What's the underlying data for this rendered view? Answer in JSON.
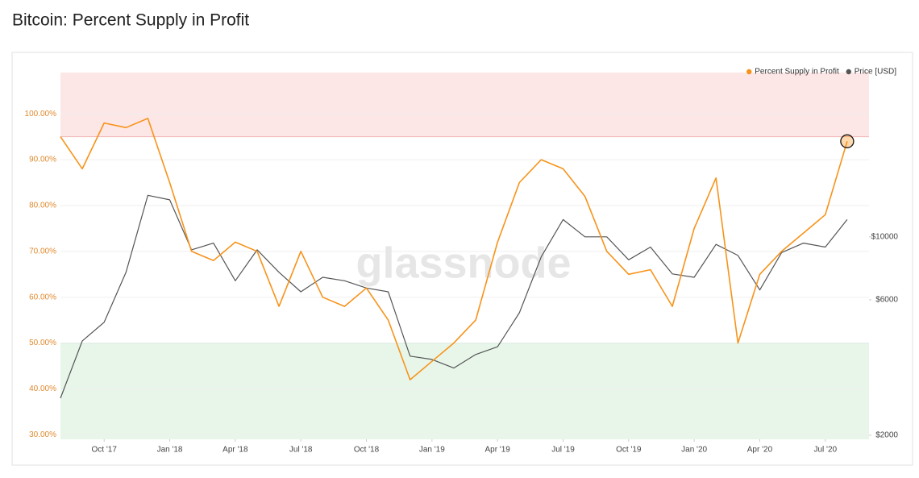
{
  "chart_data": {
    "type": "line",
    "title": "Bitcoin: Percent Supply in Profit",
    "watermark": "glassnode",
    "x": [
      "2017-08",
      "2017-09",
      "2017-10",
      "2017-11",
      "2017-12",
      "2018-01",
      "2018-02",
      "2018-03",
      "2018-04",
      "2018-05",
      "2018-06",
      "2018-07",
      "2018-08",
      "2018-09",
      "2018-10",
      "2018-11",
      "2018-12",
      "2019-01",
      "2019-02",
      "2019-03",
      "2019-04",
      "2019-05",
      "2019-06",
      "2019-07",
      "2019-08",
      "2019-09",
      "2019-10",
      "2019-11",
      "2019-12",
      "2020-01",
      "2020-02",
      "2020-03",
      "2020-04",
      "2020-05",
      "2020-06",
      "2020-07",
      "2020-08"
    ],
    "xlim": [
      "2017-08",
      "2020-09"
    ],
    "xticks": [
      {
        "value": "2017-10",
        "label": "Oct '17"
      },
      {
        "value": "2018-01",
        "label": "Jan '18"
      },
      {
        "value": "2018-04",
        "label": "Apr '18"
      },
      {
        "value": "2018-07",
        "label": "Jul '18"
      },
      {
        "value": "2018-10",
        "label": "Oct '18"
      },
      {
        "value": "2019-01",
        "label": "Jan '19"
      },
      {
        "value": "2019-04",
        "label": "Apr '19"
      },
      {
        "value": "2019-07",
        "label": "Jul '19"
      },
      {
        "value": "2019-10",
        "label": "Oct '19"
      },
      {
        "value": "2020-01",
        "label": "Jan '20"
      },
      {
        "value": "2020-04",
        "label": "Apr '20"
      },
      {
        "value": "2020-07",
        "label": "Jul '20"
      }
    ],
    "ylim": [
      29,
      109
    ],
    "yticks": [
      {
        "value": 30,
        "label": "30.00%"
      },
      {
        "value": 40,
        "label": "40.00%"
      },
      {
        "value": 50,
        "label": "50.00%"
      },
      {
        "value": 60,
        "label": "60.00%"
      },
      {
        "value": 70,
        "label": "70.00%"
      },
      {
        "value": 80,
        "label": "80.00%"
      },
      {
        "value": 90,
        "label": "90.00%"
      },
      {
        "value": 100,
        "label": "100.00%"
      }
    ],
    "y2lim": [
      1935,
      37900
    ],
    "y2log": true,
    "y2ticks": [
      {
        "value": 2000,
        "label": "$2000"
      },
      {
        "value": 6000,
        "label": "$6000"
      },
      {
        "value": 10000,
        "label": "$10000"
      }
    ],
    "grid": true,
    "legend": "top-right",
    "bands": [
      {
        "from": 95,
        "to": 109,
        "color": "#fde6e6"
      },
      {
        "from": 29,
        "to": 50,
        "color": "#e8f6ea"
      }
    ],
    "highlight_last": true,
    "series": [
      {
        "name": "Percent Supply in Profit",
        "color": "#f7931a",
        "values": [
          95,
          88,
          98,
          97,
          99,
          85,
          70,
          68,
          72,
          70,
          58,
          70,
          60,
          58,
          62,
          55,
          42,
          46,
          50,
          55,
          72,
          85,
          90,
          88,
          82,
          70,
          65,
          66,
          58,
          75,
          86,
          50,
          65,
          70,
          74,
          78,
          94
        ]
      },
      {
        "name": "Price [USD]",
        "color": "#555555",
        "axis": "y2",
        "values": [
          2700,
          4300,
          5000,
          7500,
          14000,
          13500,
          9000,
          9500,
          7000,
          9000,
          7500,
          6400,
          7200,
          7000,
          6600,
          6400,
          3800,
          3700,
          3450,
          3850,
          4100,
          5400,
          8500,
          11500,
          10000,
          10000,
          8300,
          9200,
          7400,
          7200,
          9400,
          8600,
          6500,
          8800,
          9500,
          9200,
          11500
        ]
      }
    ]
  }
}
